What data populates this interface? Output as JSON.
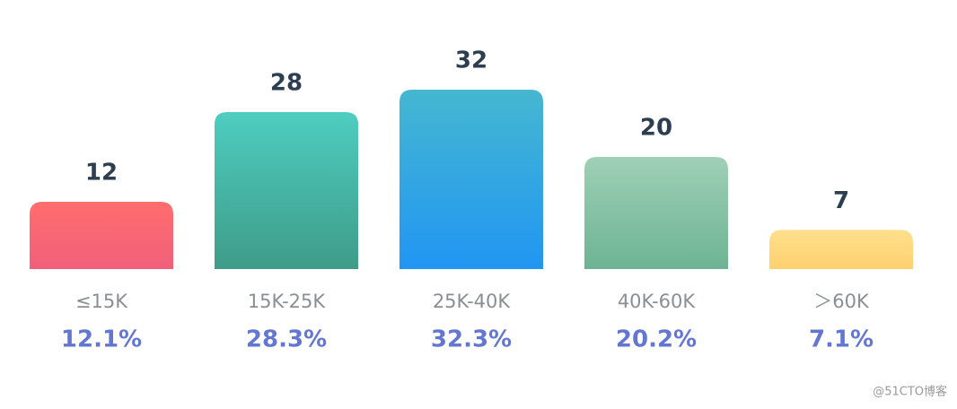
{
  "chart_data": {
    "type": "bar",
    "categories": [
      "≤15K",
      "15K-25K",
      "25K-40K",
      "40K-60K",
      "＞60K"
    ],
    "values": [
      12,
      28,
      32,
      20,
      7
    ],
    "shares": {
      "values": [
        12.1,
        28.3,
        32.3,
        20.2,
        7.1
      ],
      "value_labels": [
        "12.1%",
        "28.3%",
        "32.3%",
        "20.2%",
        "7.1%"
      ]
    },
    "colors": [
      [
        "#ff6d6d",
        "#f0607a"
      ],
      [
        "#4ecdc0",
        "#3e9c88"
      ],
      [
        "#45b7d1",
        "#2196f3"
      ],
      [
        "#9fd0b6",
        "#6db394"
      ],
      [
        "#ffe08e",
        "#ffd06e"
      ]
    ],
    "watermark": "@51CTO博客"
  }
}
